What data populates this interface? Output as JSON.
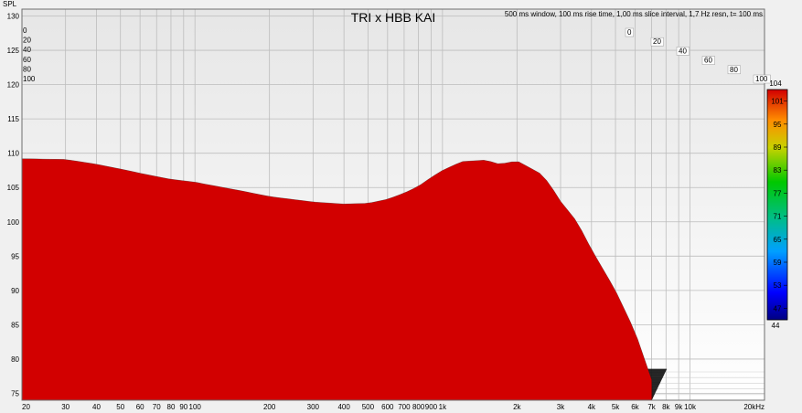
{
  "chart_data": {
    "type": "waterfall",
    "title": "TRI x HBB KAI",
    "subtitle": "500 ms window, 100 ms rise time, 1,00 ms slice interval, 1,7 Hz resn, t= 100 ms",
    "ylabel": "SPL",
    "xunit": "kHz",
    "xlim": [
      20,
      20000
    ],
    "x_scale": "log",
    "ylim": [
      74,
      131
    ],
    "zlim": [
      0,
      100
    ],
    "grid": true,
    "x_ticks": [
      {
        "v": 20,
        "label": "20"
      },
      {
        "v": 30,
        "label": "30"
      },
      {
        "v": 40,
        "label": "40"
      },
      {
        "v": 50,
        "label": "50"
      },
      {
        "v": 60,
        "label": "60"
      },
      {
        "v": 70,
        "label": "70"
      },
      {
        "v": 80,
        "label": "80"
      },
      {
        "v": 90,
        "label": "90"
      },
      {
        "v": 100,
        "label": "100"
      },
      {
        "v": 200,
        "label": "200"
      },
      {
        "v": 300,
        "label": "300"
      },
      {
        "v": 400,
        "label": "400"
      },
      {
        "v": 500,
        "label": "500"
      },
      {
        "v": 600,
        "label": "600"
      },
      {
        "v": 700,
        "label": "700"
      },
      {
        "v": 800,
        "label": "800"
      },
      {
        "v": 900,
        "label": "900"
      },
      {
        "v": 1000,
        "label": "1k"
      },
      {
        "v": 2000,
        "label": "2k"
      },
      {
        "v": 3000,
        "label": "3k"
      },
      {
        "v": 4000,
        "label": "4k"
      },
      {
        "v": 5000,
        "label": "5k"
      },
      {
        "v": 6000,
        "label": "6k"
      },
      {
        "v": 7000,
        "label": "7k"
      },
      {
        "v": 8000,
        "label": "8k"
      },
      {
        "v": 9000,
        "label": "9k"
      },
      {
        "v": 10000,
        "label": "10k"
      },
      {
        "v": 20000,
        "label": "20kHz"
      }
    ],
    "y_ticks": [
      {
        "v": 75,
        "label": "75"
      },
      {
        "v": 80,
        "label": "80"
      },
      {
        "v": 85,
        "label": "85"
      },
      {
        "v": 90,
        "label": "90"
      },
      {
        "v": 95,
        "label": "95"
      },
      {
        "v": 100,
        "label": "100"
      },
      {
        "v": 105,
        "label": "105"
      },
      {
        "v": 110,
        "label": "110"
      },
      {
        "v": 115,
        "label": "115"
      },
      {
        "v": 120,
        "label": "120"
      },
      {
        "v": 125,
        "label": "125"
      },
      {
        "v": 130,
        "label": "130"
      }
    ],
    "depth_ticks": [
      {
        "v": 0,
        "label": "0"
      },
      {
        "v": 20,
        "label": "20"
      },
      {
        "v": 40,
        "label": "40"
      },
      {
        "v": 60,
        "label": "60"
      },
      {
        "v": 80,
        "label": "80"
      },
      {
        "v": 100,
        "label": "100"
      }
    ],
    "colorbar": {
      "max_label": "104",
      "min_label": "44",
      "range": [
        44,
        104
      ],
      "ticks": [
        {
          "v": 101,
          "label": "101"
        },
        {
          "v": 95,
          "label": "95"
        },
        {
          "v": 89,
          "label": "89"
        },
        {
          "v": 83,
          "label": "83"
        },
        {
          "v": 77,
          "label": "77"
        },
        {
          "v": 71,
          "label": "71"
        },
        {
          "v": 65,
          "label": "65"
        },
        {
          "v": 59,
          "label": "59"
        },
        {
          "v": 53,
          "label": "53"
        },
        {
          "v": 47,
          "label": "47"
        }
      ]
    },
    "series": [
      {
        "time_ms": 0,
        "freq": [
          20,
          30,
          40,
          50,
          60,
          70,
          80,
          100,
          110,
          150,
          200,
          300,
          400,
          500,
          600,
          700,
          800,
          900,
          1000,
          1200,
          1500,
          1700,
          2000,
          2500,
          2700,
          3000,
          3500,
          4000,
          5000,
          6000,
          7000
        ],
        "spl": [
          109.2,
          109.1,
          108.4,
          107.7,
          107.1,
          106.6,
          106.2,
          105.8,
          105.5,
          104.6,
          103.7,
          102.9,
          102.6,
          102.7,
          103.3,
          104.2,
          105.2,
          106.5,
          107.5,
          108.8,
          109.0,
          108.4,
          108.9,
          107.0,
          105.6,
          103.0,
          100.0,
          96.0,
          90.0,
          84.0,
          77.0
        ]
      }
    ]
  }
}
